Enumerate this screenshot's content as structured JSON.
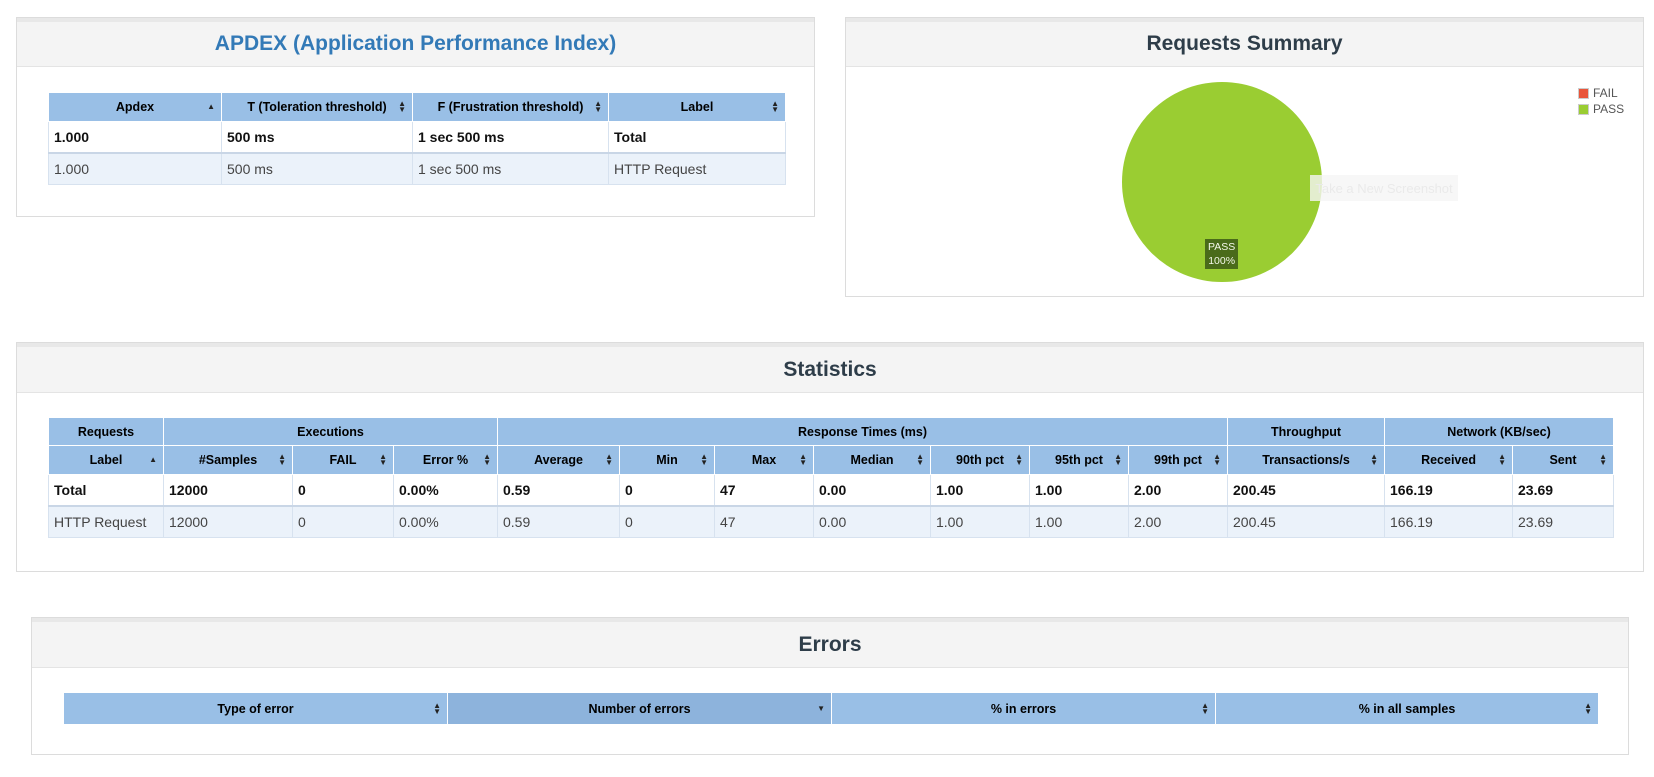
{
  "apdex": {
    "title": "APDEX (Application Performance Index)",
    "headers": [
      "Apdex",
      "T (Toleration threshold)",
      "F (Frustration threshold)",
      "Label"
    ],
    "total": [
      "1.000",
      "500 ms",
      "1 sec 500 ms",
      "Total"
    ],
    "row": [
      "1.000",
      "500 ms",
      "1 sec 500 ms",
      "HTTP Request"
    ]
  },
  "summary": {
    "title": "Requests Summary",
    "legend": [
      {
        "label": "FAIL",
        "color": "#e9553a"
      },
      {
        "label": "PASS",
        "color": "#9acd32"
      }
    ],
    "pie_label": "PASS",
    "pie_percent": "100%",
    "overlay_button": "Take a New Screenshot"
  },
  "chart_data": {
    "type": "pie",
    "categories": [
      "FAIL",
      "PASS"
    ],
    "values": [
      0,
      100
    ],
    "colors": [
      "#e9553a",
      "#9acd32"
    ],
    "legend_position": "top-right"
  },
  "statistics": {
    "title": "Statistics",
    "groups": [
      "Requests",
      "Executions",
      "Response Times (ms)",
      "Throughput",
      "Network (KB/sec)"
    ],
    "headers": [
      "Label",
      "#Samples",
      "FAIL",
      "Error %",
      "Average",
      "Min",
      "Max",
      "Median",
      "90th pct",
      "95th pct",
      "99th pct",
      "Transactions/s",
      "Received",
      "Sent"
    ],
    "total": [
      "Total",
      "12000",
      "0",
      "0.00%",
      "0.59",
      "0",
      "47",
      "0.00",
      "1.00",
      "1.00",
      "2.00",
      "200.45",
      "166.19",
      "23.69"
    ],
    "row": [
      "HTTP Request",
      "12000",
      "0",
      "0.00%",
      "0.59",
      "0",
      "47",
      "0.00",
      "1.00",
      "1.00",
      "2.00",
      "200.45",
      "166.19",
      "23.69"
    ]
  },
  "errors": {
    "title": "Errors",
    "headers": [
      "Type of error",
      "Number of errors",
      "% in errors",
      "% in all samples"
    ]
  }
}
